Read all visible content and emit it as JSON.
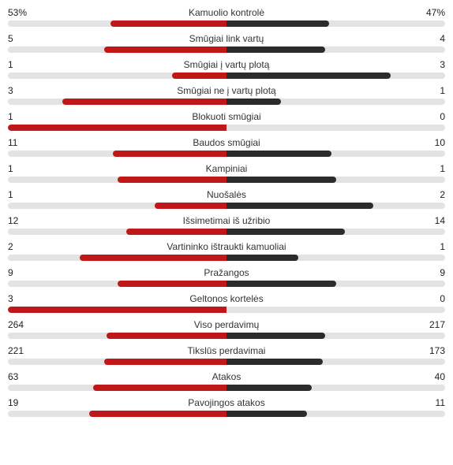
{
  "colors": {
    "track": "#e3e3e3",
    "left": "#c01818",
    "right": "#2b2b2b"
  },
  "stats": [
    {
      "label": "Kamuolio kontrolė",
      "left_text": "53%",
      "right_text": "47%",
      "left_fill": 53,
      "right_fill": 47
    },
    {
      "label": "Smūgiai link vartų",
      "left_text": "5",
      "right_text": "4",
      "left_fill": 56,
      "right_fill": 45
    },
    {
      "label": "Smūgiai į vartų plotą",
      "left_text": "1",
      "right_text": "3",
      "left_fill": 25,
      "right_fill": 75
    },
    {
      "label": "Smūgiai ne į vartų plotą",
      "left_text": "3",
      "right_text": "1",
      "left_fill": 75,
      "right_fill": 25
    },
    {
      "label": "Blokuoti smūgiai",
      "left_text": "1",
      "right_text": "0",
      "left_fill": 100,
      "right_fill": 0
    },
    {
      "label": "Baudos smūgiai",
      "left_text": "11",
      "right_text": "10",
      "left_fill": 52,
      "right_fill": 48
    },
    {
      "label": "Kampiniai",
      "left_text": "1",
      "right_text": "1",
      "left_fill": 50,
      "right_fill": 50
    },
    {
      "label": "Nuošalės",
      "left_text": "1",
      "right_text": "2",
      "left_fill": 33,
      "right_fill": 67
    },
    {
      "label": "Išsimetimai iš užribio",
      "left_text": "12",
      "right_text": "14",
      "left_fill": 46,
      "right_fill": 54
    },
    {
      "label": "Vartininko ištraukti kamuoliai",
      "left_text": "2",
      "right_text": "1",
      "left_fill": 67,
      "right_fill": 33
    },
    {
      "label": "Pražangos",
      "left_text": "9",
      "right_text": "9",
      "left_fill": 50,
      "right_fill": 50
    },
    {
      "label": "Geltonos kortelės",
      "left_text": "3",
      "right_text": "0",
      "left_fill": 100,
      "right_fill": 0
    },
    {
      "label": "Viso perdavimų",
      "left_text": "264",
      "right_text": "217",
      "left_fill": 55,
      "right_fill": 45
    },
    {
      "label": "Tikslūs perdavimai",
      "left_text": "221",
      "right_text": "173",
      "left_fill": 56,
      "right_fill": 44
    },
    {
      "label": "Atakos",
      "left_text": "63",
      "right_text": "40",
      "left_fill": 61,
      "right_fill": 39
    },
    {
      "label": "Pavojingos atakos",
      "left_text": "19",
      "right_text": "11",
      "left_fill": 63,
      "right_fill": 37
    }
  ]
}
